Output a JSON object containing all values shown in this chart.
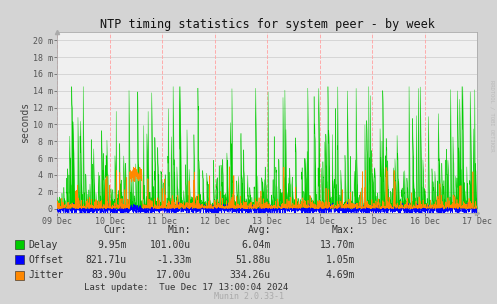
{
  "title": "NTP timing statistics for system peer - by week",
  "ylabel": "seconds",
  "ytick_labels": [
    "0",
    "2 m",
    "4 m",
    "6 m",
    "8 m",
    "10 m",
    "12 m",
    "14 m",
    "16 m",
    "18 m",
    "20 m"
  ],
  "ytick_values": [
    0,
    0.002,
    0.004,
    0.006,
    0.008,
    0.01,
    0.012,
    0.014,
    0.016,
    0.018,
    0.02
  ],
  "ymax": 0.021,
  "xtick_labels": [
    "09 Dec",
    "10 Dec",
    "11 Dec",
    "12 Dec",
    "13 Dec",
    "14 Dec",
    "15 Dec",
    "16 Dec",
    "17 Dec"
  ],
  "bg_color": "#d4d4d4",
  "plot_bg_color": "#f0f0f0",
  "grid_color_h": "#cccccc",
  "grid_color_v": "#ffaaaa",
  "delay_color": "#00cc00",
  "offset_color": "#0000ff",
  "jitter_color": "#ff8800",
  "right_label": "RRDTOOL / TOBI OETIKER",
  "legend_items": [
    "Delay",
    "Offset",
    "Jitter"
  ],
  "stats_header": [
    "Cur:",
    "Min:",
    "Avg:",
    "Max:"
  ],
  "stats_delay": [
    "9.95m",
    "101.00u",
    "6.04m",
    "13.70m"
  ],
  "stats_offset": [
    "821.71u",
    "-1.33m",
    "51.88u",
    "1.05m"
  ],
  "stats_jitter": [
    "83.90u",
    "17.00u",
    "334.26u",
    "4.69m"
  ],
  "last_update": "Last update:  Tue Dec 17 13:00:04 2024",
  "munin_version": "Munin 2.0.33-1",
  "seed": 42
}
